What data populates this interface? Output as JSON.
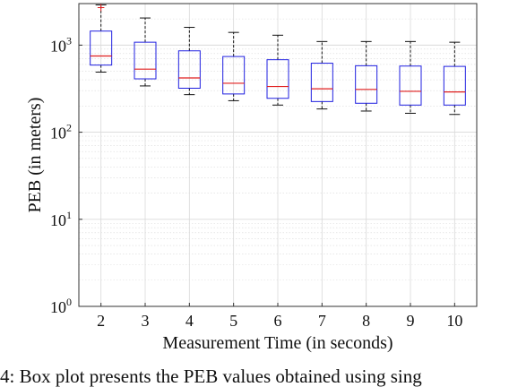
{
  "chart_data": {
    "type": "box",
    "x": [
      2,
      3,
      4,
      5,
      6,
      7,
      8,
      9,
      10
    ],
    "xlabel": "Measurement Time (in seconds)",
    "ylabel": "PEB (in meters)",
    "yscale": "log",
    "ylim": [
      1,
      3000
    ],
    "xlim": [
      1.5,
      10.5
    ],
    "y_tick_labels": [
      {
        "base": "10",
        "exp": "0"
      },
      {
        "base": "10",
        "exp": "1"
      },
      {
        "base": "10",
        "exp": "2"
      },
      {
        "base": "10",
        "exp": "3"
      }
    ],
    "grid": true,
    "boxes": [
      {
        "x": 2,
        "whisker_low": 490,
        "q1": 590,
        "median": 750,
        "q3": 1450,
        "whisker_high": 2900,
        "outliers": [
          2700
        ]
      },
      {
        "x": 3,
        "whisker_low": 340,
        "q1": 410,
        "median": 530,
        "q3": 1080,
        "whisker_high": 2050,
        "outliers": []
      },
      {
        "x": 4,
        "whisker_low": 270,
        "q1": 320,
        "median": 420,
        "q3": 860,
        "whisker_high": 1600,
        "outliers": []
      },
      {
        "x": 5,
        "whisker_low": 230,
        "q1": 275,
        "median": 365,
        "q3": 740,
        "whisker_high": 1400,
        "outliers": []
      },
      {
        "x": 6,
        "whisker_low": 205,
        "q1": 245,
        "median": 335,
        "q3": 680,
        "whisker_high": 1300,
        "outliers": []
      },
      {
        "x": 7,
        "whisker_low": 185,
        "q1": 225,
        "median": 315,
        "q3": 620,
        "whisker_high": 1100,
        "outliers": []
      },
      {
        "x": 8,
        "whisker_low": 175,
        "q1": 215,
        "median": 310,
        "q3": 580,
        "whisker_high": 1100,
        "outliers": []
      },
      {
        "x": 9,
        "whisker_low": 165,
        "q1": 205,
        "median": 295,
        "q3": 575,
        "whisker_high": 1100,
        "outliers": []
      },
      {
        "x": 10,
        "whisker_low": 160,
        "q1": 205,
        "median": 290,
        "q3": 570,
        "whisker_high": 1080,
        "outliers": []
      }
    ],
    "colors": {
      "box": "#1f1fe0",
      "median": "#e01f1f",
      "whisker": "#111111",
      "grid": "#d9d9d9"
    }
  },
  "caption": "4: Box plot presents the PEB values obtained using sing"
}
